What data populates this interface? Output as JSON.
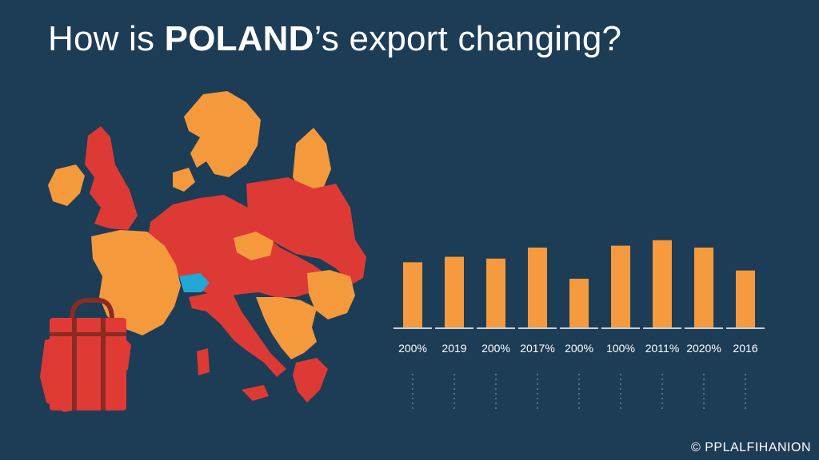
{
  "title": {
    "prefix": "How is ",
    "country": "POLAND",
    "suffix": "’s export changing?"
  },
  "colors": {
    "background": "#1d3c56",
    "bar": "#f59a3e",
    "map_red": "#de3a35",
    "map_orange": "#f49a3d",
    "map_highlight": "#22a7d6",
    "suitcase": "#e03a34",
    "suitcase_strap": "#8a2b24",
    "baseline": "#ffffff"
  },
  "icons": {
    "map": "europe-map-illustration",
    "suitcase": "suitcase-icon",
    "copyright": "copyright-icon"
  },
  "chart_data": {
    "type": "bar",
    "title": "",
    "xlabel": "",
    "ylabel": "",
    "categories": [
      "200%",
      "2019",
      "200%",
      "2017%",
      "200%",
      "100%",
      "2011%",
      "2020%",
      "2016"
    ],
    "values": [
      0.71,
      0.77,
      0.75,
      0.87,
      0.53,
      0.89,
      0.95,
      0.87,
      0.62
    ],
    "value_scale": "relative height, tallest bar ≈ 1.0 (no y-axis printed)",
    "ylim": [
      0,
      1
    ],
    "grid": false,
    "legend": "none"
  },
  "credit": "PPLALFIHANION"
}
